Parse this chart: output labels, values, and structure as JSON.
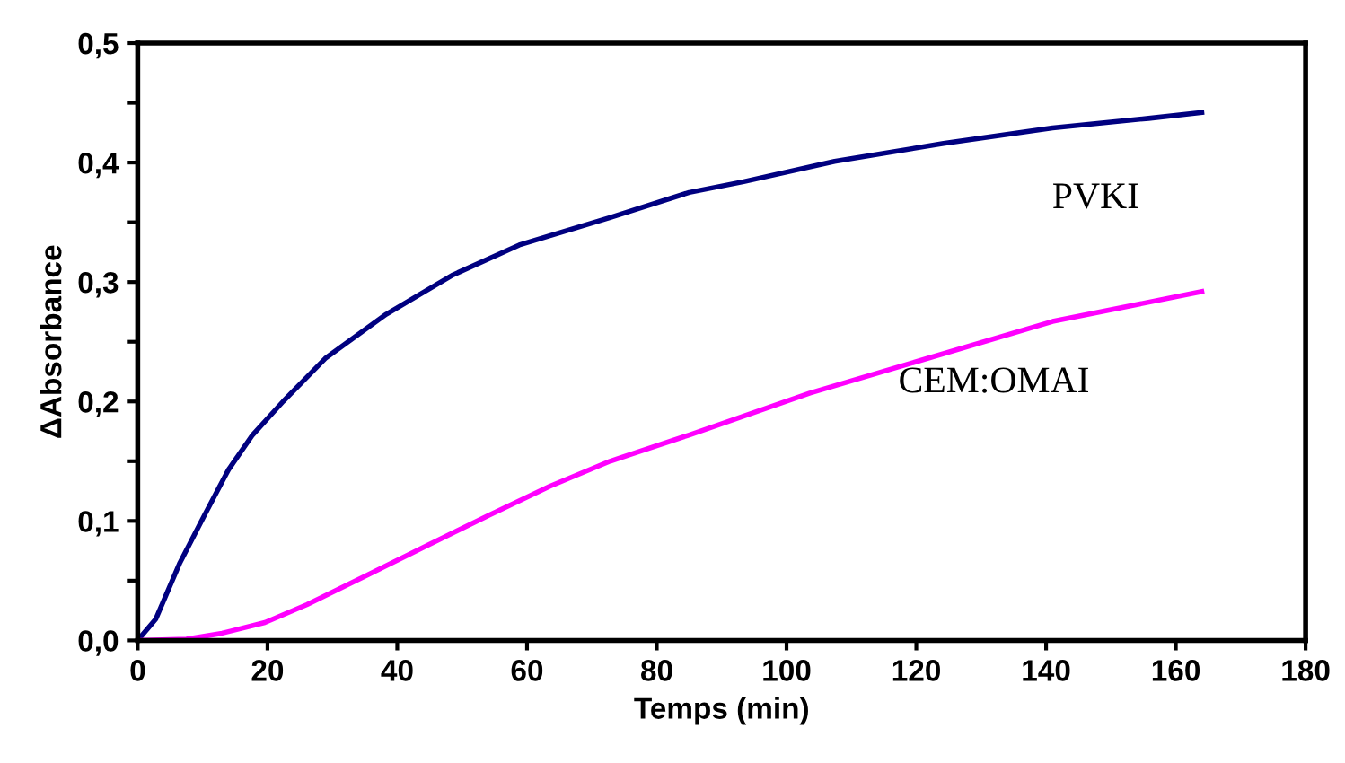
{
  "chart_data": {
    "type": "line",
    "xlabel": "Temps (min)",
    "ylabel": "ΔAbsorbance",
    "xlim": [
      0,
      180
    ],
    "xticks": [
      0,
      20,
      40,
      60,
      80,
      100,
      120,
      140,
      160,
      180
    ],
    "ylim": [
      0,
      0.5
    ],
    "yticks": [
      {
        "value": 0,
        "label": "0,0"
      },
      {
        "value": 0.05,
        "label": null
      },
      {
        "value": 0.1,
        "label": "0,1"
      },
      {
        "value": 0.15,
        "label": null
      },
      {
        "value": 0.2,
        "label": "0,2"
      },
      {
        "value": 0.25,
        "label": null
      },
      {
        "value": 0.3,
        "label": "0,3"
      },
      {
        "value": 0.35,
        "label": null
      },
      {
        "value": 0.4,
        "label": "0,4"
      },
      {
        "value": 0.45,
        "label": null
      },
      {
        "value": 0.5,
        "label": "0,5"
      }
    ],
    "grid": false,
    "legend": false,
    "marker": "none",
    "line_style": "solid",
    "series": [
      {
        "name": "PVKI",
        "color": "#000080",
        "x": [
          0,
          2.8,
          6.5,
          10.3,
          14,
          17.7,
          22.4,
          28.9,
          38.3,
          48.6,
          58.8,
          72.8,
          85,
          93.4,
          107.4,
          124.2,
          141,
          155.8,
          164
        ],
        "values": [
          0,
          0.018,
          0.065,
          0.105,
          0.143,
          0.172,
          0.2,
          0.236,
          0.273,
          0.306,
          0.331,
          0.354,
          0.375,
          0.384,
          0.401,
          0.416,
          0.429,
          0.437,
          0.442
        ]
      },
      {
        "name": "CEM:OMAI",
        "color": "#ff00ff",
        "x": [
          0,
          7.5,
          13,
          19.6,
          26.1,
          35.5,
          44.8,
          54.2,
          63.5,
          72.8,
          85,
          103.6,
          122.3,
          141,
          164
        ],
        "values": [
          0,
          0.001,
          0.006,
          0.015,
          0.03,
          0.055,
          0.08,
          0.105,
          0.129,
          0.15,
          0.172,
          0.207,
          0.237,
          0.267,
          0.292
        ]
      }
    ]
  }
}
